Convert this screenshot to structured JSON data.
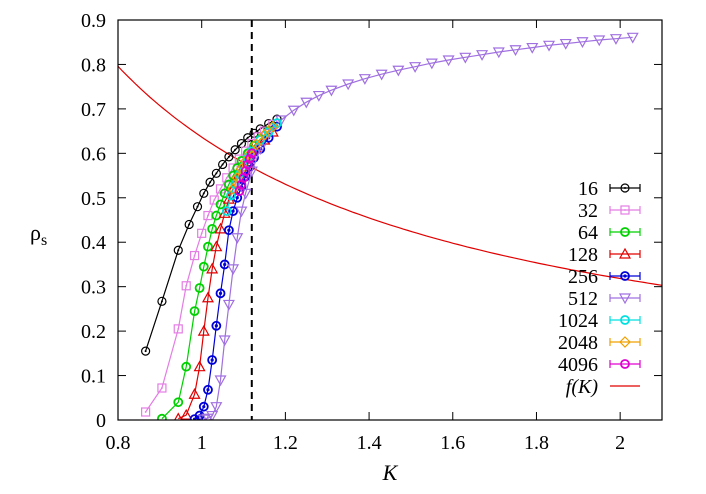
{
  "chart_data": {
    "type": "line",
    "xlabel": "K",
    "ylabel": "ρ",
    "ylabel_sub": "s",
    "xlim": [
      0.8,
      2.1
    ],
    "ylim": [
      0,
      0.9
    ],
    "xticks": [
      {
        "v": 0.8,
        "label": "0.8"
      },
      {
        "v": 1.0,
        "label": "1"
      },
      {
        "v": 1.2,
        "label": "1.2"
      },
      {
        "v": 1.4,
        "label": "1.4"
      },
      {
        "v": 1.6,
        "label": "1.6"
      },
      {
        "v": 1.8,
        "label": "1.8"
      },
      {
        "v": 2.0,
        "label": "2"
      }
    ],
    "yticks": [
      {
        "v": 0,
        "label": "0"
      },
      {
        "v": 0.1,
        "label": "0.1"
      },
      {
        "v": 0.2,
        "label": "0.2"
      },
      {
        "v": 0.3,
        "label": "0.3"
      },
      {
        "v": 0.4,
        "label": "0.4"
      },
      {
        "v": 0.5,
        "label": "0.5"
      },
      {
        "v": 0.6,
        "label": "0.6"
      },
      {
        "v": 0.7,
        "label": "0.7"
      },
      {
        "v": 0.8,
        "label": "0.8"
      },
      {
        "v": 0.9,
        "label": "0.9"
      }
    ],
    "vertical_line": {
      "x": 1.1197,
      "style": "dashed",
      "color": "#000000"
    },
    "grid": false,
    "legend_position": "right",
    "series": [
      {
        "name": "16",
        "color": "#000000",
        "marker": "circle-dot",
        "x": [
          0.866,
          0.905,
          0.944,
          0.97,
          0.99,
          1.005,
          1.02,
          1.035,
          1.05,
          1.065,
          1.08,
          1.095,
          1.11,
          1.125,
          1.14,
          1.16,
          1.18
        ],
        "y": [
          0.155,
          0.267,
          0.382,
          0.44,
          0.48,
          0.51,
          0.535,
          0.555,
          0.575,
          0.592,
          0.608,
          0.622,
          0.635,
          0.645,
          0.655,
          0.667,
          0.677
        ]
      },
      {
        "name": "32",
        "color": "#e47de4",
        "marker": "square",
        "x": [
          0.866,
          0.905,
          0.944,
          0.963,
          0.983,
          1.0,
          1.015,
          1.03,
          1.045,
          1.06,
          1.075,
          1.09,
          1.105,
          1.12,
          1.135,
          1.15,
          1.17
        ],
        "y": [
          0.018,
          0.072,
          0.205,
          0.302,
          0.37,
          0.42,
          0.46,
          0.495,
          0.52,
          0.545,
          0.567,
          0.587,
          0.605,
          0.622,
          0.637,
          0.65,
          0.665
        ]
      },
      {
        "name": "64",
        "color": "#00d000",
        "marker": "circle",
        "x": [
          0.905,
          0.944,
          0.963,
          0.983,
          0.995,
          1.005,
          1.015,
          1.025,
          1.035,
          1.045,
          1.055,
          1.065,
          1.075,
          1.085,
          1.095,
          1.11,
          1.125,
          1.14,
          1.16
        ],
        "y": [
          0.003,
          0.04,
          0.12,
          0.245,
          0.297,
          0.345,
          0.39,
          0.43,
          0.46,
          0.485,
          0.51,
          0.53,
          0.55,
          0.567,
          0.583,
          0.6,
          0.617,
          0.632,
          0.65
        ]
      },
      {
        "name": "128",
        "color": "#e00000",
        "marker": "triangle",
        "x": [
          0.944,
          0.963,
          0.983,
          0.995,
          1.005,
          1.015,
          1.025,
          1.035,
          1.045,
          1.055,
          1.065,
          1.075,
          1.085,
          1.1,
          1.115,
          1.13,
          1.15,
          1.17
        ],
        "y": [
          0.003,
          0.011,
          0.058,
          0.12,
          0.2,
          0.275,
          0.34,
          0.39,
          0.43,
          0.465,
          0.497,
          0.52,
          0.545,
          0.57,
          0.59,
          0.61,
          0.63,
          0.648
        ]
      },
      {
        "name": "256",
        "color": "#0000d8",
        "marker": "circle-half",
        "x": [
          0.983,
          0.995,
          1.005,
          1.015,
          1.025,
          1.035,
          1.045,
          1.055,
          1.065,
          1.075,
          1.085,
          1.095,
          1.105,
          1.115,
          1.125,
          1.14,
          1.16,
          1.18
        ],
        "y": [
          0.002,
          0.01,
          0.03,
          0.068,
          0.135,
          0.212,
          0.285,
          0.35,
          0.427,
          0.47,
          0.5,
          0.525,
          0.548,
          0.57,
          0.59,
          0.61,
          0.635,
          0.66
        ]
      },
      {
        "name": "512",
        "color": "#a070e0",
        "marker": "triangle-down",
        "x": [
          1.005,
          1.015,
          1.025,
          1.035,
          1.045,
          1.055,
          1.065,
          1.075,
          1.085,
          1.095,
          1.105,
          1.12,
          1.14,
          1.16,
          1.19,
          1.22,
          1.25,
          1.28,
          1.31,
          1.35,
          1.39,
          1.43,
          1.47,
          1.51,
          1.55,
          1.59,
          1.63,
          1.67,
          1.71,
          1.75,
          1.79,
          1.83,
          1.87,
          1.91,
          1.95,
          1.99,
          2.03
        ],
        "y": [
          0.002,
          0.004,
          0.01,
          0.03,
          0.09,
          0.18,
          0.26,
          0.34,
          0.41,
          0.47,
          0.51,
          0.56,
          0.61,
          0.645,
          0.675,
          0.697,
          0.715,
          0.73,
          0.742,
          0.756,
          0.768,
          0.778,
          0.787,
          0.795,
          0.803,
          0.81,
          0.816,
          0.822,
          0.828,
          0.833,
          0.838,
          0.843,
          0.847,
          0.851,
          0.855,
          0.858,
          0.861
        ]
      },
      {
        "name": "1024",
        "color": "#00e0e0",
        "marker": "circle",
        "x": [
          1.06,
          1.07,
          1.08,
          1.09,
          1.1,
          1.11,
          1.12,
          1.14,
          1.16,
          1.18
        ],
        "y": [
          0.47,
          0.505,
          0.53,
          0.552,
          0.57,
          0.59,
          0.605,
          0.63,
          0.648,
          0.668
        ]
      },
      {
        "name": "2048",
        "color": "#f0a000",
        "marker": "diamond",
        "x": [
          1.075,
          1.085,
          1.095,
          1.105,
          1.115,
          1.13,
          1.15,
          1.17
        ],
        "y": [
          0.52,
          0.545,
          0.565,
          0.582,
          0.598,
          0.62,
          0.642,
          0.66
        ]
      },
      {
        "name": "4096",
        "color": "#e000d0",
        "marker": "circle",
        "x": [
          1.09,
          1.095,
          1.1,
          1.105,
          1.11,
          1.115,
          1.12
        ],
        "y": [
          0.515,
          0.53,
          0.545,
          0.56,
          0.575,
          0.588,
          0.6
        ]
      },
      {
        "name": "f(K)",
        "color": "#e00000",
        "marker": "none",
        "curve": "f",
        "coefficient": 0.6366,
        "x_range": [
          0.8,
          2.1
        ]
      }
    ]
  }
}
